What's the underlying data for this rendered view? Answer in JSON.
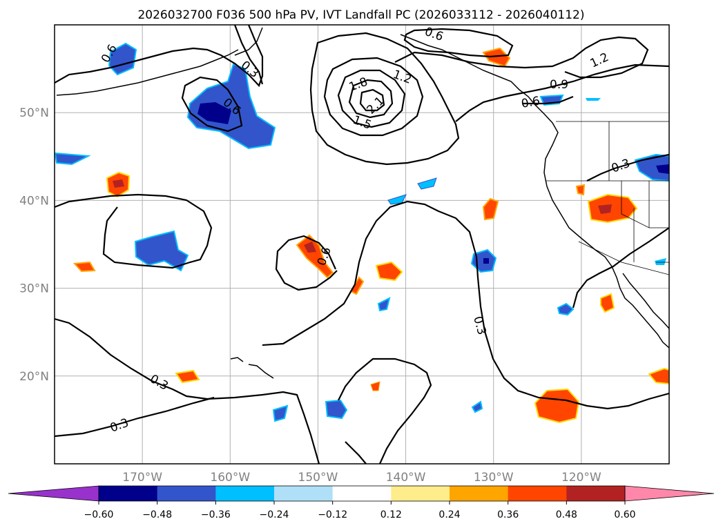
{
  "chart_data": {
    "type": "map",
    "title": "2026032700 F036 500 hPa PV, IVT Landfall PC (2026033112 - 2026040112)",
    "x_ticks": [
      "170°W",
      "160°W",
      "150°W",
      "140°W",
      "130°W",
      "120°W"
    ],
    "y_ticks": [
      "50°N",
      "40°N",
      "30°N",
      "20°N"
    ],
    "lon_range": [
      -180,
      -110
    ],
    "lat_range": [
      10,
      60
    ],
    "colorbar": {
      "ticks": [
        "−0.60",
        "−0.48",
        "−0.36",
        "−0.24",
        "−0.12",
        "0.12",
        "0.24",
        "0.36",
        "0.48",
        "0.60"
      ],
      "colors": [
        "#9932cc",
        "#00008b",
        "#3355cc",
        "#00bfff",
        "#b0e0f8",
        "#ffffff",
        "#ffec8b",
        "#ffa500",
        "#ff4500",
        "#b22222",
        "#ff88aa"
      ]
    },
    "contour_labels": [
      "0.6",
      "0.3",
      "0.6",
      "0.6",
      "1.2",
      "1.8",
      "2.1",
      "1.5",
      "0.9",
      "0.6",
      "1.2",
      "0.3",
      "0.6",
      "0.3",
      "0.3",
      "0.3"
    ]
  }
}
